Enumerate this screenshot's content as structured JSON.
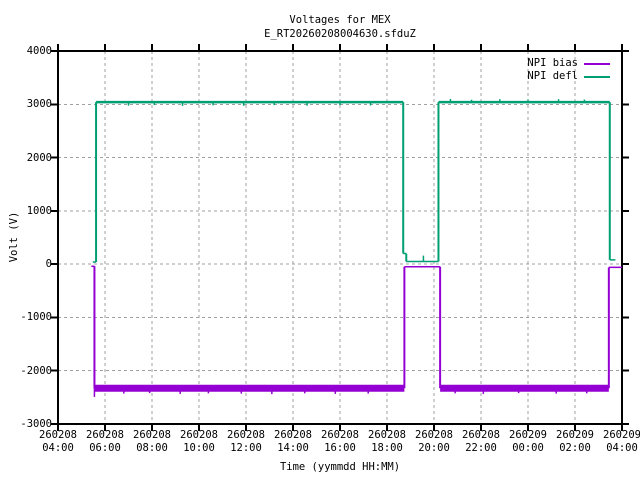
{
  "colors": {
    "background": "#ffffff",
    "border": "#000000",
    "grid": "#a0a0a0",
    "text": "#000000",
    "bias": "#9400d3",
    "defl": "#009e73"
  },
  "legend": {
    "position": "inside top-right",
    "items": [
      {
        "label": "NPI bias",
        "color": "#9400d3"
      },
      {
        "label": "NPI defl",
        "color": "#009e73"
      }
    ]
  },
  "chart_data": {
    "type": "line",
    "title": "Voltages for MEX",
    "subtitle": "E_RT20260208004630.sfduZ",
    "xlabel": "Time (yymmdd HH:MM)",
    "ylabel": "Volt (V)",
    "ylim": [
      -3000,
      4000
    ],
    "yticks": [
      4000,
      3000,
      2000,
      1000,
      0,
      -1000,
      -2000,
      -3000
    ],
    "x_range_hours": [
      4,
      28
    ],
    "xticks": [
      {
        "date": "260208",
        "time": "04:00"
      },
      {
        "date": "260208",
        "time": "06:00"
      },
      {
        "date": "260208",
        "time": "08:00"
      },
      {
        "date": "260208",
        "time": "10:00"
      },
      {
        "date": "260208",
        "time": "12:00"
      },
      {
        "date": "260208",
        "time": "14:00"
      },
      {
        "date": "260208",
        "time": "16:00"
      },
      {
        "date": "260208",
        "time": "18:00"
      },
      {
        "date": "260208",
        "time": "20:00"
      },
      {
        "date": "260208",
        "time": "22:00"
      },
      {
        "date": "260209",
        "time": "00:00"
      },
      {
        "date": "260209",
        "time": "02:00"
      },
      {
        "date": "260209",
        "time": "04:00"
      }
    ],
    "grid": true,
    "units": "V",
    "series": [
      {
        "name": "NPI bias",
        "color": "#9400d3",
        "segments": [
          {
            "from": 5.42,
            "to": 5.55,
            "value": -40,
            "lw": 1.5
          },
          {
            "from": 5.55,
            "to": 18.74,
            "value": -2330,
            "lw": 7
          },
          {
            "from": 18.74,
            "to": 20.26,
            "value": -50,
            "lw": 1.5
          },
          {
            "from": 20.26,
            "to": 27.44,
            "value": -2330,
            "lw": 7
          },
          {
            "from": 27.44,
            "to": 28.0,
            "value": -60,
            "lw": 1.5
          }
        ],
        "spikes": [
          [
            5.55,
            -2490
          ],
          [
            6.8,
            -2430
          ],
          [
            7.9,
            -2420
          ],
          [
            9.2,
            -2435
          ],
          [
            10.4,
            -2425
          ],
          [
            11.8,
            -2430
          ],
          [
            13.1,
            -2440
          ],
          [
            14.5,
            -2425
          ],
          [
            15.8,
            -2435
          ],
          [
            17.2,
            -2430
          ],
          [
            20.9,
            -2425
          ],
          [
            22.1,
            -2435
          ],
          [
            23.6,
            -2420
          ],
          [
            25.2,
            -2430
          ],
          [
            26.5,
            -2425
          ]
        ]
      },
      {
        "name": "NPI defl",
        "color": "#009e73",
        "segments": [
          {
            "from": 5.48,
            "to": 5.62,
            "value": 40,
            "lw": 1.5
          },
          {
            "from": 5.62,
            "to": 18.69,
            "value": 3040,
            "lw": 2.5
          },
          {
            "from": 18.69,
            "to": 18.82,
            "value": 200,
            "lw": 1.5
          },
          {
            "from": 18.82,
            "to": 20.19,
            "value": 50,
            "lw": 1.5
          },
          {
            "from": 20.19,
            "to": 27.48,
            "value": 3040,
            "lw": 2.5
          },
          {
            "from": 27.48,
            "to": 27.72,
            "value": 80,
            "lw": 1.5
          }
        ],
        "spikes": [
          [
            7.0,
            2975
          ],
          [
            8.1,
            2985
          ],
          [
            9.3,
            2970
          ],
          [
            10.6,
            2980
          ],
          [
            11.9,
            2972
          ],
          [
            13.2,
            2985
          ],
          [
            14.6,
            2975
          ],
          [
            16.0,
            2985
          ],
          [
            17.3,
            2978
          ],
          [
            19.55,
            160
          ],
          [
            20.7,
            3100
          ],
          [
            21.6,
            3085
          ],
          [
            22.8,
            3095
          ],
          [
            24.0,
            3085
          ],
          [
            25.3,
            3095
          ],
          [
            26.4,
            3088
          ]
        ]
      }
    ]
  }
}
